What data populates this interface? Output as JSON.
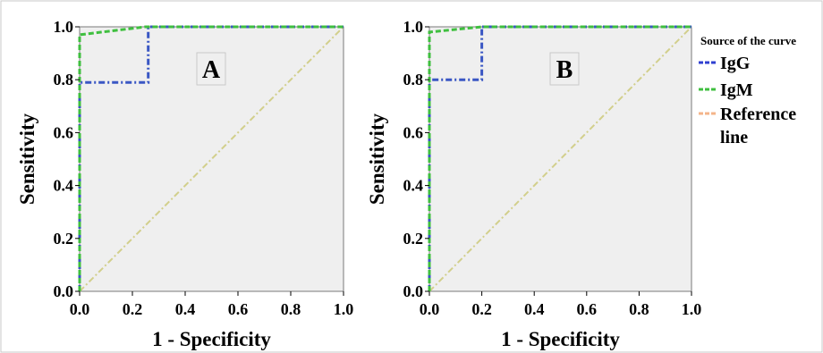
{
  "chart_data": [
    {
      "type": "line",
      "panel_label": "A",
      "xlabel": "1 - Specificity",
      "ylabel": "Sensitivity",
      "xlim": [
        0,
        1
      ],
      "ylim": [
        0,
        1
      ],
      "x_ticks": [
        "0.0",
        "0.2",
        "0.4",
        "0.6",
        "0.8",
        "1.0"
      ],
      "y_ticks": [
        "0.0",
        "0.2",
        "0.4",
        "0.6",
        "0.8",
        "1.0"
      ],
      "series": [
        {
          "name": "IgG",
          "color": "#3a57c4",
          "dash": "dash-dot",
          "x": [
            0,
            0,
            0.26,
            0.26,
            1
          ],
          "y": [
            0,
            0.79,
            0.79,
            1.0,
            1.0
          ]
        },
        {
          "name": "IgM",
          "color": "#3fbf3f",
          "dash": "dashed",
          "x": [
            0,
            0,
            0.25,
            1
          ],
          "y": [
            0,
            0.97,
            1.0,
            1.0
          ]
        },
        {
          "name": "Reference line",
          "color": "#d2cf8c",
          "dash": "dash-dot",
          "x": [
            0,
            1
          ],
          "y": [
            0,
            1
          ]
        }
      ]
    },
    {
      "type": "line",
      "panel_label": "B",
      "xlabel": "1 - Specificity",
      "ylabel": "Sensitivity",
      "xlim": [
        0,
        1
      ],
      "ylim": [
        0,
        1
      ],
      "x_ticks": [
        "0.0",
        "0.2",
        "0.4",
        "0.6",
        "0.8",
        "1.0"
      ],
      "y_ticks": [
        "0.0",
        "0.2",
        "0.4",
        "0.6",
        "0.8",
        "1.0"
      ],
      "series": [
        {
          "name": "IgG",
          "color": "#3a57c4",
          "dash": "dash-dot",
          "x": [
            0,
            0,
            0.2,
            0.2,
            1
          ],
          "y": [
            0,
            0.8,
            0.8,
            1.0,
            1.0
          ]
        },
        {
          "name": "IgM",
          "color": "#3fbf3f",
          "dash": "dashed",
          "x": [
            0,
            0,
            0.2,
            1
          ],
          "y": [
            0,
            0.98,
            1.0,
            1.0
          ]
        },
        {
          "name": "Reference line",
          "color": "#d2cf8c",
          "dash": "dash-dot",
          "x": [
            0,
            1
          ],
          "y": [
            0,
            1
          ]
        }
      ]
    }
  ],
  "legend": {
    "title": "Source of the curve",
    "items": [
      {
        "label": "IgG",
        "color": "#2f3fd0"
      },
      {
        "label": "IgM",
        "color": "#3fbf3f"
      },
      {
        "label_lines": [
          "Reference",
          "line"
        ],
        "color": "#f4b48a"
      }
    ]
  },
  "style": {
    "plot_bg": "#efefef",
    "frame_color": "#7a7a7a"
  }
}
